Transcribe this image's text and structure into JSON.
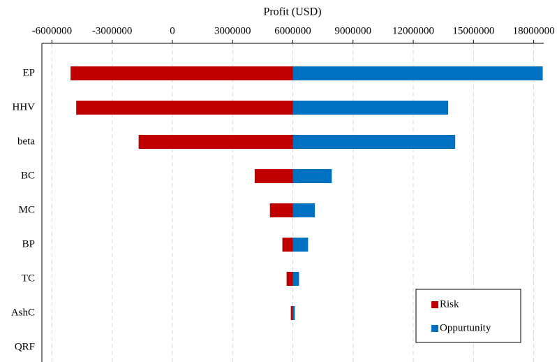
{
  "chart_data": {
    "type": "tornado",
    "title": "Profit (USD)",
    "categories": [
      "EP",
      "HHV",
      "beta",
      "BC",
      "MC",
      "BP",
      "TC",
      "AshC",
      "QRF"
    ],
    "base": 6000000,
    "series": [
      {
        "name": "Risk",
        "color": "#c00000",
        "values": [
          -5070000,
          -4790000,
          -1680000,
          4100000,
          4860000,
          5480000,
          5690000,
          5900000,
          6000000
        ]
      },
      {
        "name": "Oppurtunity",
        "color": "#0070c0",
        "values": [
          18450000,
          13740000,
          14090000,
          7940000,
          7100000,
          6760000,
          6310000,
          6100000,
          6000000
        ]
      }
    ],
    "xlim": [
      -6500000,
      18500000
    ],
    "xticks": [
      -6000000,
      -3000000,
      0,
      3000000,
      6000000,
      9000000,
      12000000,
      15000000,
      18000000
    ],
    "grid": true,
    "legend": "lower right"
  }
}
